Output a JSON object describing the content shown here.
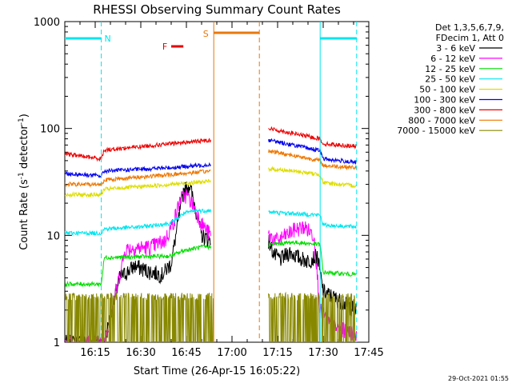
{
  "chart_data": {
    "type": "line",
    "title": "RHESSI Observing Summary Count Rates",
    "xlabel": "Start Time (26-Apr-15 16:05:22)",
    "ylabel": "Count Rate (s",
    "ylabel_sup1": "-1",
    "ylabel_mid": " detector",
    "ylabel_sup2": "-1",
    "ylabel_end": ")",
    "y_scale": "log",
    "ylim": [
      1,
      1000
    ],
    "xlim": [
      "16:05",
      "17:45"
    ],
    "x_ticks": [
      "16:15",
      "16:30",
      "16:45",
      "17:00",
      "17:15",
      "17:30",
      "17:45"
    ],
    "y_ticks": [
      "1",
      "10",
      "100",
      "1000"
    ],
    "legend_header": [
      "Det 1,3,5,6,7,9,",
      "FDecim 1, Att 0"
    ],
    "legend_position": "right",
    "timestamp": "29-Oct-2021 01:55",
    "flags": [
      {
        "label": "N",
        "color": "#00e5ee",
        "segments": [
          [
            "16:05",
            "16:17"
          ],
          [
            "17:29",
            "17:41"
          ]
        ]
      },
      {
        "label": "S",
        "color": "#e8780c",
        "segments": [
          [
            "16:54",
            "17:09"
          ]
        ]
      },
      {
        "label": "F",
        "color": "#e60000",
        "segments": [
          [
            "16:40",
            "16:44"
          ]
        ]
      }
    ],
    "intervals": [
      {
        "name": "night",
        "color": "#00e5ee",
        "style": "solid",
        "at": "17:29"
      },
      {
        "name": "night",
        "color": "#00e5ee",
        "style": "dashed",
        "at": "16:17"
      },
      {
        "name": "night",
        "color": "#00e5ee",
        "style": "dashed",
        "at": "17:41"
      },
      {
        "name": "saa",
        "color": "#e8780c",
        "style": "solid",
        "at": "16:54"
      },
      {
        "name": "saa",
        "color": "#e8780c",
        "style": "dashed",
        "at": "17:09"
      }
    ],
    "series": [
      {
        "name": "3 - 6 keV",
        "color": "#000000",
        "gap_band": [
          1,
          1
        ],
        "seg1": {
          "t": [
            "16:05",
            "16:18",
            "16:23",
            "16:28",
            "16:33",
            "16:37",
            "16:40",
            "16:42",
            "16:44",
            "16:46",
            "16:48",
            "16:50",
            "16:53"
          ],
          "v": [
            1.0,
            1.0,
            4.0,
            5.2,
            4.6,
            4.3,
            5.5,
            12,
            26,
            30,
            18,
            10,
            9
          ]
        },
        "seg2": {
          "t": [
            "17:12",
            "17:14",
            "17:16",
            "17:19",
            "17:22",
            "17:25",
            "17:28",
            "17:30",
            "17:35",
            "17:41"
          ],
          "v": [
            9.0,
            6.5,
            6.0,
            7.0,
            6.2,
            5.8,
            6.5,
            3.0,
            2.5,
            2.0
          ]
        }
      },
      {
        "name": "6 - 12 keV",
        "color": "#ff00ff",
        "seg1": {
          "t": [
            "16:05",
            "16:18",
            "16:25",
            "16:33",
            "16:38",
            "16:41",
            "16:43",
            "16:45",
            "16:47",
            "16:50",
            "16:53"
          ],
          "v": [
            1.0,
            1.0,
            7.5,
            7.8,
            9.0,
            14,
            22,
            24,
            20,
            13,
            10
          ]
        },
        "seg2": {
          "t": [
            "17:12",
            "17:15",
            "17:18",
            "17:21",
            "17:24",
            "17:27",
            "17:29",
            "17:33",
            "17:41"
          ],
          "v": [
            10,
            9.0,
            10.2,
            11.5,
            12.0,
            10,
            2.0,
            1.4,
            1.2
          ]
        }
      },
      {
        "name": "12 - 25 keV",
        "color": "#00dd00",
        "seg1": {
          "t": [
            "16:05",
            "16:17",
            "16:18",
            "16:40",
            "16:44",
            "16:50",
            "16:53"
          ],
          "v": [
            3.5,
            3.5,
            6.2,
            6.4,
            7.2,
            7.8,
            7.8
          ]
        },
        "seg2": {
          "t": [
            "17:12",
            "17:20",
            "17:25",
            "17:29",
            "17:30",
            "17:41"
          ],
          "v": [
            8.2,
            8.6,
            8.4,
            8.2,
            4.5,
            4.3
          ]
        }
      },
      {
        "name": "25 - 50 keV",
        "color": "#00e5ee",
        "seg1": {
          "t": [
            "16:05",
            "16:17",
            "16:18",
            "16:30",
            "16:40",
            "16:44",
            "16:48",
            "16:53"
          ],
          "v": [
            10.5,
            10.5,
            11.5,
            12.0,
            13,
            16,
            17,
            17
          ]
        },
        "seg2": {
          "t": [
            "17:12",
            "17:20",
            "17:29",
            "17:30",
            "17:41"
          ],
          "v": [
            16.5,
            16.0,
            15.5,
            12.5,
            12.0
          ]
        }
      },
      {
        "name": "50 - 100 keV",
        "color": "#dddd00",
        "seg1": {
          "t": [
            "16:05",
            "16:17",
            "16:18",
            "16:40",
            "16:53"
          ],
          "v": [
            24,
            24,
            27,
            30,
            32
          ]
        },
        "seg2": {
          "t": [
            "17:12",
            "17:20",
            "17:29",
            "17:30",
            "17:41"
          ],
          "v": [
            42,
            40,
            37,
            31,
            29
          ]
        }
      },
      {
        "name": "100 - 300 keV",
        "color": "#0000ee",
        "seg1": {
          "t": [
            "16:05",
            "16:17",
            "16:18",
            "16:40",
            "16:53"
          ],
          "v": [
            38,
            36,
            40,
            43,
            46
          ]
        },
        "seg2": {
          "t": [
            "17:12",
            "17:20",
            "17:29",
            "17:30",
            "17:41"
          ],
          "v": [
            78,
            70,
            62,
            52,
            48
          ]
        }
      },
      {
        "name": "300 - 800 keV",
        "color": "#ee0000",
        "seg1": {
          "t": [
            "16:05",
            "16:17",
            "16:18",
            "16:40",
            "16:53"
          ],
          "v": [
            58,
            52,
            63,
            72,
            78
          ]
        },
        "seg2": {
          "t": [
            "17:12",
            "17:20",
            "17:29",
            "17:30",
            "17:41"
          ],
          "v": [
            100,
            90,
            80,
            72,
            68
          ]
        }
      },
      {
        "name": "800 - 7000 keV",
        "color": "#ee7700",
        "seg1": {
          "t": [
            "16:05",
            "16:17",
            "16:18",
            "16:40",
            "16:53"
          ],
          "v": [
            30,
            30,
            33,
            37,
            40
          ]
        },
        "seg2": {
          "t": [
            "17:12",
            "17:20",
            "17:29",
            "17:30",
            "17:41"
          ],
          "v": [
            62,
            56,
            50,
            45,
            43
          ]
        }
      },
      {
        "name": "7000 - 15000 keV",
        "color": "#888800",
        "band": {
          "lo": 1.0,
          "hi": 2.9
        }
      }
    ]
  }
}
